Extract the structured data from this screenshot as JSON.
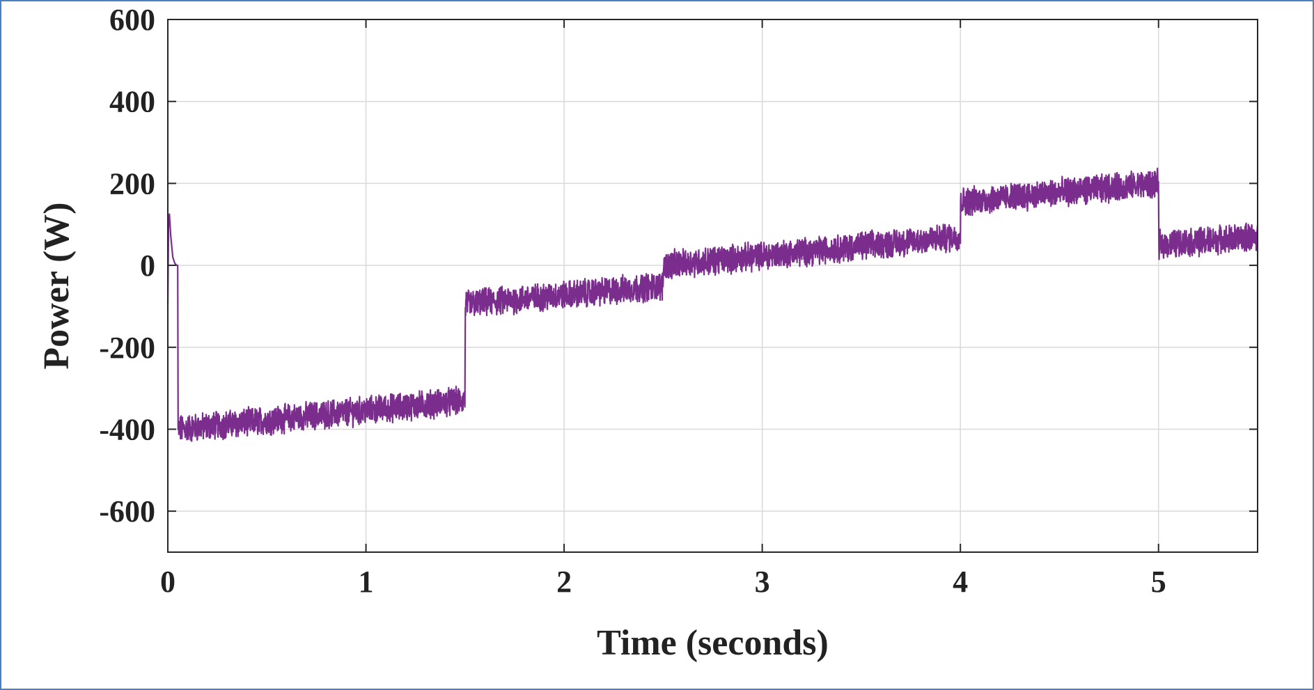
{
  "chart_data": {
    "type": "line",
    "xlabel": "Time (seconds)",
    "ylabel": "Power (W)",
    "xlim": [
      0,
      5.5
    ],
    "ylim": [
      -700,
      600
    ],
    "xticks": [
      0,
      1,
      2,
      3,
      4,
      5
    ],
    "yticks": [
      -600,
      -400,
      -200,
      0,
      200,
      400,
      600
    ],
    "grid": true,
    "series": [
      {
        "color": "#7b2d8e",
        "noise_band_w": 30,
        "points": [
          [
            0.0,
            -95
          ],
          [
            0.003,
            90
          ],
          [
            0.008,
            125
          ],
          [
            0.015,
            70
          ],
          [
            0.025,
            20
          ],
          [
            0.035,
            5
          ],
          [
            0.045,
            0
          ],
          [
            0.05,
            0
          ],
          [
            0.052,
            -400
          ],
          [
            1.5,
            -330
          ],
          [
            1.501,
            -95
          ],
          [
            2.5,
            -50
          ],
          [
            2.501,
            0
          ],
          [
            4.0,
            70
          ],
          [
            4.001,
            155
          ],
          [
            5.0,
            200
          ],
          [
            5.001,
            50
          ],
          [
            5.5,
            70
          ]
        ]
      }
    ]
  },
  "colors": {
    "line": "#7b2d8e",
    "frame_border": "#4a7fc1",
    "grid": "#d9d9d9",
    "axes": "#262626"
  }
}
